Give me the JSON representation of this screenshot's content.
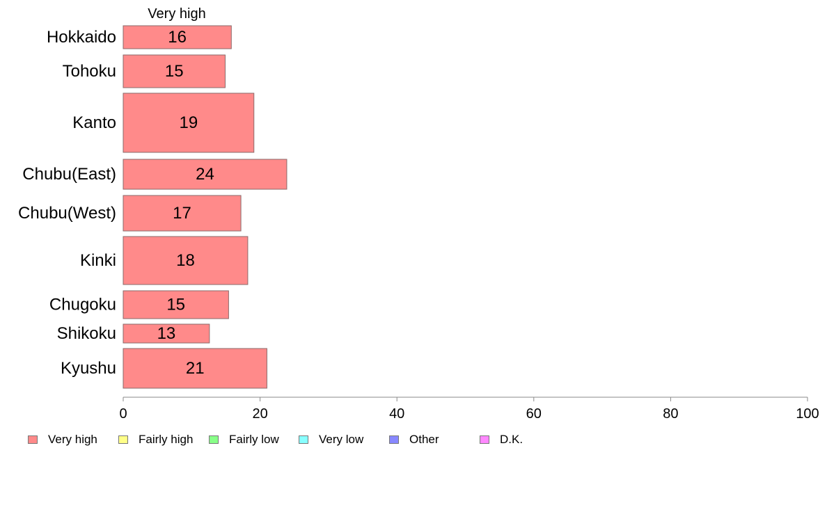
{
  "chart_data": {
    "type": "bar",
    "orientation": "horizontal",
    "stacked": true,
    "column_title": "Very high",
    "categories": [
      "Hokkaido",
      "Tohoku",
      "Kanto",
      "Chubu(East)",
      "Chubu(West)",
      "Kinki",
      "Chugoku",
      "Shikoku",
      "Kyushu"
    ],
    "series": [
      {
        "name": "Very high",
        "color": "#ff8a8a",
        "values": [
          15.8,
          14.9,
          19.1,
          23.9,
          17.2,
          18.2,
          15.4,
          12.6,
          21.0
        ],
        "labels": [
          "16",
          "15",
          "19",
          "24",
          "17",
          "18",
          "15",
          "13",
          "21"
        ]
      }
    ],
    "xlim": [
      0,
      100
    ],
    "xticks": [
      "0",
      "20",
      "40",
      "60",
      "80",
      "100"
    ],
    "legend": {
      "placement": "bottom",
      "items": [
        {
          "label": "Very high",
          "color": "#ff8a8a"
        },
        {
          "label": "Fairly high",
          "color": "#ffff88"
        },
        {
          "label": "Fairly low",
          "color": "#88ff88"
        },
        {
          "label": "Very low",
          "color": "#88ffff"
        },
        {
          "label": "Other",
          "color": "#8888ff"
        },
        {
          "label": "D.K.",
          "color": "#ff88ff"
        }
      ]
    }
  }
}
